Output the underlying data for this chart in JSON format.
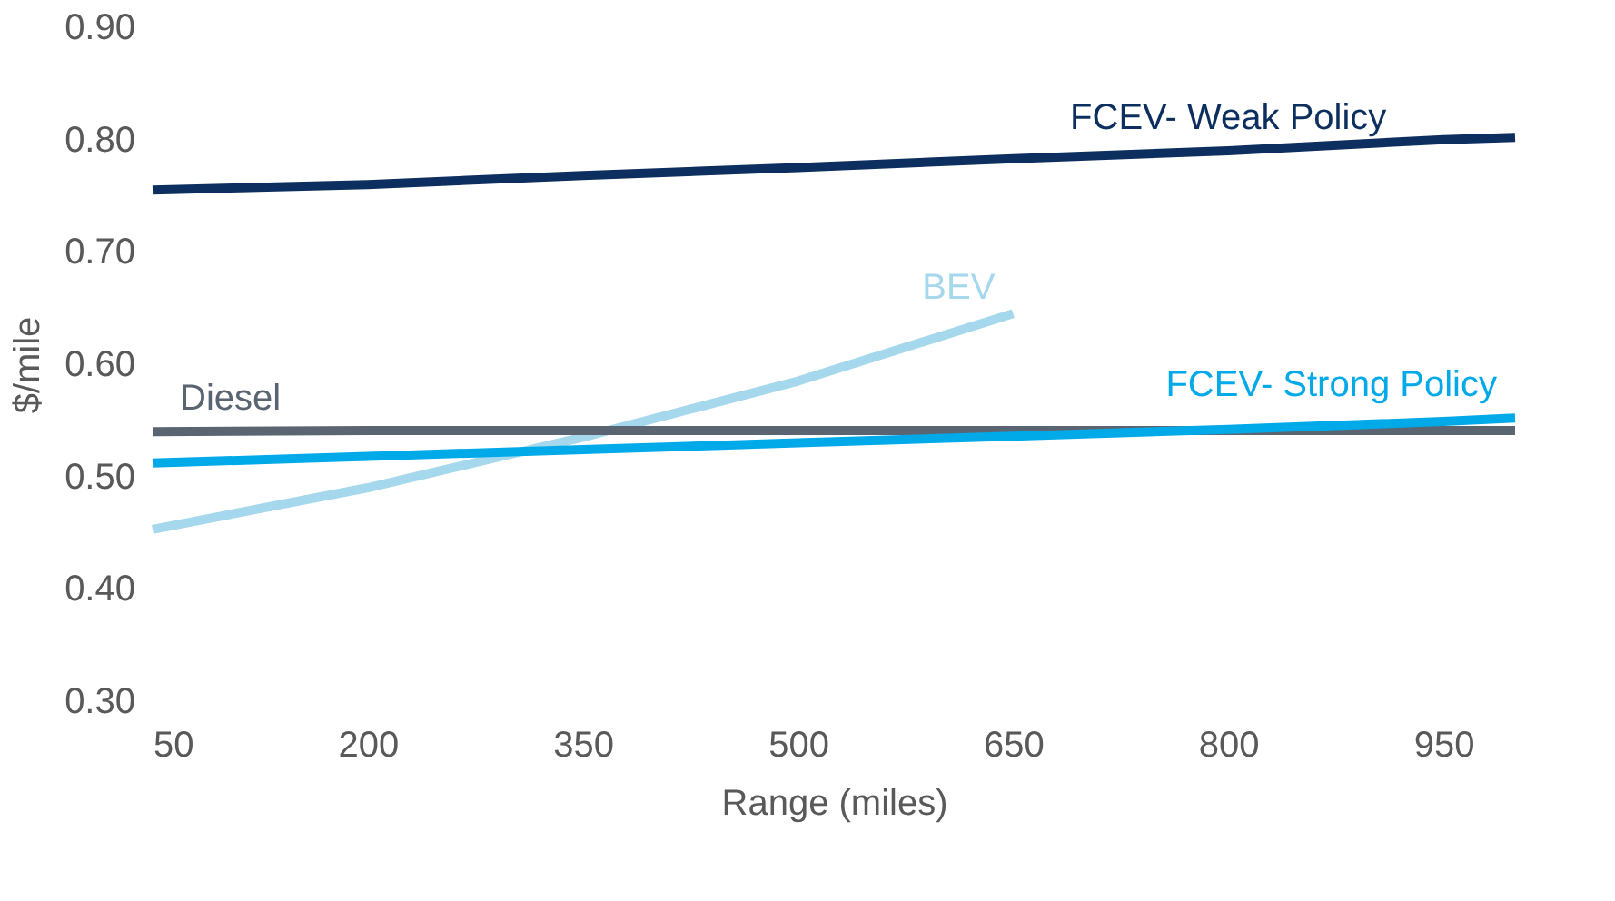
{
  "chart_data": {
    "type": "line",
    "xlabel": "Range (miles)",
    "ylabel": "$/mile",
    "xlim": [
      50,
      1000
    ],
    "xticks": [
      50,
      200,
      350,
      500,
      650,
      800,
      950
    ],
    "ylim": [
      0.3,
      0.9
    ],
    "yticks": [
      {
        "value": 0.3,
        "label": "0.30"
      },
      {
        "value": 0.4,
        "label": "0.40"
      },
      {
        "value": 0.5,
        "label": "0.50"
      },
      {
        "value": 0.6,
        "label": "0.60"
      },
      {
        "value": 0.7,
        "label": "0.70"
      },
      {
        "value": 0.8,
        "label": "0.80"
      },
      {
        "value": 0.9,
        "label": "0.90"
      }
    ],
    "grid": false,
    "marker": "none",
    "line_style": "solid",
    "series": [
      {
        "name": "FCEV- Weak Policy",
        "color": "#0c2f5f",
        "x": [
          50,
          200,
          350,
          500,
          650,
          800,
          950,
          1000
        ],
        "values": [
          0.755,
          0.76,
          0.768,
          0.775,
          0.783,
          0.79,
          0.8,
          0.802
        ]
      },
      {
        "name": "BEV",
        "color": "#a5d8ec",
        "x": [
          50,
          200,
          350,
          500,
          650
        ],
        "values": [
          0.453,
          0.49,
          0.535,
          0.585,
          0.645
        ]
      },
      {
        "name": "Diesel",
        "color": "#5b6571",
        "x": [
          50,
          200,
          350,
          500,
          650,
          800,
          950,
          1000
        ],
        "values": [
          0.54,
          0.541,
          0.541,
          0.541,
          0.541,
          0.541,
          0.541,
          0.541
        ]
      },
      {
        "name": "FCEV- Strong Policy",
        "color": "#00a9e8",
        "x": [
          50,
          200,
          350,
          500,
          650,
          800,
          950,
          1000
        ],
        "values": [
          0.512,
          0.518,
          0.524,
          0.53,
          0.536,
          0.542,
          0.549,
          0.552
        ]
      }
    ]
  }
}
